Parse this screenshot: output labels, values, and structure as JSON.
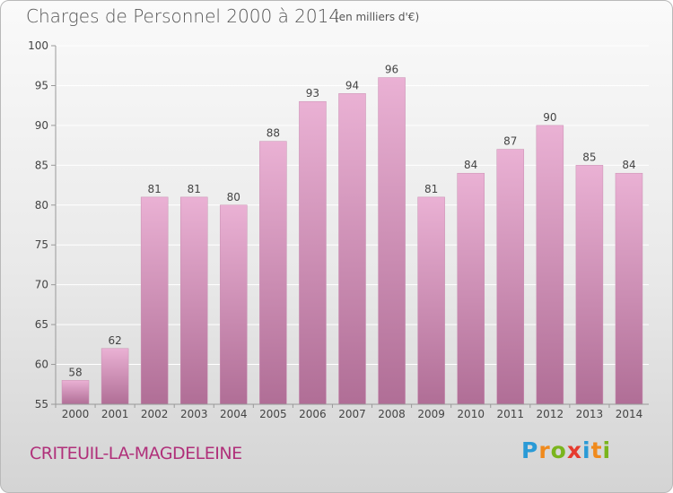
{
  "header": {
    "title": "Charges de Personnel 2000 à 2014",
    "subtitle": "(en milliers d'€)"
  },
  "footer": {
    "place_name": "CRITEUIL-LA-MAGDELEINE",
    "logo_letters": [
      "P",
      "r",
      "o",
      "x",
      "i",
      "t",
      "i"
    ],
    "logo_colors": [
      "#2a9ad6",
      "#f08a1c",
      "#7ab51d",
      "#e63b2e",
      "#2a9ad6",
      "#f08a1c",
      "#7ab51d"
    ]
  },
  "colors": {
    "bar_top": "#eab1d4",
    "bar_bottom": "#b06e96",
    "axis": "#999999",
    "grid": "#ffffff"
  },
  "chart_data": {
    "type": "bar",
    "categories": [
      "2000",
      "2001",
      "2002",
      "2003",
      "2004",
      "2005",
      "2006",
      "2007",
      "2008",
      "2009",
      "2010",
      "2011",
      "2012",
      "2013",
      "2014"
    ],
    "values": [
      58,
      62,
      81,
      81,
      80,
      88,
      93,
      94,
      96,
      81,
      84,
      87,
      90,
      85,
      84
    ],
    "title": "Charges de Personnel 2000 à 2014",
    "subtitle": "(en milliers d'€)",
    "xlabel": "",
    "ylabel": "",
    "ylim": [
      55,
      100
    ],
    "yticks": [
      55,
      60,
      65,
      70,
      75,
      80,
      85,
      90,
      95,
      100
    ],
    "grid": true,
    "legend": "none"
  }
}
